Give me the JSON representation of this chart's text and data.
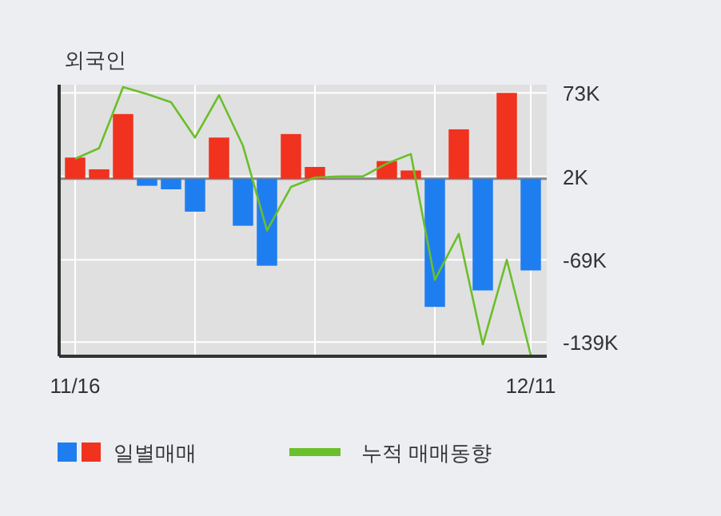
{
  "chart_data": {
    "type": "bar",
    "title": "외국인",
    "categories": [
      "11/16",
      null,
      null,
      null,
      null,
      null,
      null,
      null,
      null,
      null,
      null,
      null,
      null,
      null,
      null,
      null,
      null,
      null,
      null,
      "12/11"
    ],
    "series": [
      {
        "name": "일별매매",
        "values": [
          18,
          8,
          55,
          -6,
          -9,
          -28,
          35,
          -40,
          -74,
          38,
          10,
          0,
          0,
          15,
          7,
          -109,
          42,
          -95,
          73,
          -78
        ],
        "colors": [
          "#f0321e",
          "#f0321e",
          "#f0321e",
          "#1e7ef0",
          "#1e7ef0",
          "#1e7ef0",
          "#f0321e",
          "#1e7ef0",
          "#1e7ef0",
          "#f0321e",
          "#f0321e",
          "#f0321e",
          "#f0321e",
          "#f0321e",
          "#f0321e",
          "#1e7ef0",
          "#f0321e",
          "#1e7ef0",
          "#f0321e",
          "#1e7ef0"
        ]
      },
      {
        "name": "누적 매매동향",
        "type": "line",
        "color": "#6abf2a",
        "values": [
          17,
          26,
          78,
          72,
          65,
          35,
          71,
          28,
          -44,
          -7,
          1,
          2,
          2,
          13,
          21,
          -86,
          -47,
          -141,
          -69,
          -150
        ]
      }
    ],
    "ylim": [
      -151,
      80
    ],
    "yticks": [
      {
        "value": 73,
        "label": "73K"
      },
      {
        "value": 2,
        "label": "2K"
      },
      {
        "value": -69,
        "label": "-69K"
      },
      {
        "value": -139,
        "label": "-139K"
      }
    ],
    "grid": true,
    "legend": "bottom"
  }
}
